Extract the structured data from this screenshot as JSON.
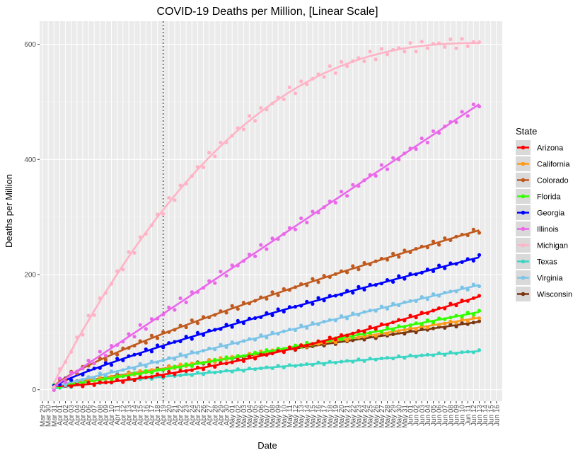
{
  "chart_data": {
    "type": "scatter",
    "title": "COVID-19 Deaths per Million, [Linear Scale]",
    "xlabel": "Date",
    "ylabel": "Deaths per Million",
    "x_range": [
      "Mar 29",
      "Jun 16"
    ],
    "x_ticks": [
      "Mar 29",
      "Mar 30",
      "Mar 31",
      "Apr 01",
      "Apr 02",
      "Apr 03",
      "Apr 04",
      "Apr 05",
      "Apr 06",
      "Apr 07",
      "Apr 08",
      "Apr 09",
      "Apr 10",
      "Apr 11",
      "Apr 12",
      "Apr 13",
      "Apr 14",
      "Apr 15",
      "Apr 16",
      "Apr 17",
      "Apr 18",
      "Apr 19",
      "Apr 20",
      "Apr 21",
      "Apr 22",
      "Apr 23",
      "Apr 24",
      "Apr 25",
      "Apr 26",
      "Apr 27",
      "Apr 28",
      "Apr 29",
      "Apr 30",
      "May 01",
      "May 02",
      "May 03",
      "May 04",
      "May 05",
      "May 06",
      "May 07",
      "May 08",
      "May 09",
      "May 10",
      "May 11",
      "May 12",
      "May 13",
      "May 14",
      "May 15",
      "May 16",
      "May 17",
      "May 18",
      "May 19",
      "May 20",
      "May 21",
      "May 22",
      "May 23",
      "May 24",
      "May 25",
      "May 26",
      "May 27",
      "May 28",
      "May 29",
      "May 30",
      "May 31",
      "Jun 01",
      "Jun 02",
      "Jun 03",
      "Jun 04",
      "Jun 05",
      "Jun 06",
      "Jun 07",
      "Jun 08",
      "Jun 09",
      "Jun 10",
      "Jun 11",
      "Jun 12",
      "Jun 13",
      "Jun 14",
      "Jun 15",
      "Jun 16"
    ],
    "y_ticks": [
      0,
      200,
      400,
      600
    ],
    "ylim": [
      -20,
      640
    ],
    "vline_date": "Apr 19",
    "legend": {
      "title": "State",
      "position": "right"
    },
    "background": "#ebebeb",
    "grid": true,
    "series": [
      {
        "name": "Arizona",
        "color": "#ff0000",
        "end": 162,
        "shape": 1.5
      },
      {
        "name": "California",
        "color": "#ff9a1a",
        "end": 125,
        "shape": 1.0
      },
      {
        "name": "Colorado",
        "color": "#c05a1f",
        "end": 277,
        "shape": 0.8
      },
      {
        "name": "Florida",
        "color": "#33ff00",
        "end": 135,
        "shape": 1.1
      },
      {
        "name": "Georgia",
        "color": "#0000ff",
        "end": 230,
        "shape": 0.85
      },
      {
        "name": "Illinois",
        "color": "#ea68ea",
        "end": 496,
        "shape": 1.0
      },
      {
        "name": "Michigan",
        "color": "#ffb3c6",
        "end": 602,
        "shape": 0.5
      },
      {
        "name": "Texas",
        "color": "#3cd6c4",
        "end": 67,
        "shape": 0.85
      },
      {
        "name": "Virginia",
        "color": "#7bc4e8",
        "end": 182,
        "shape": 1.0
      },
      {
        "name": "Wisconsin",
        "color": "#7a3510",
        "end": 118,
        "shape": 0.95
      }
    ]
  }
}
